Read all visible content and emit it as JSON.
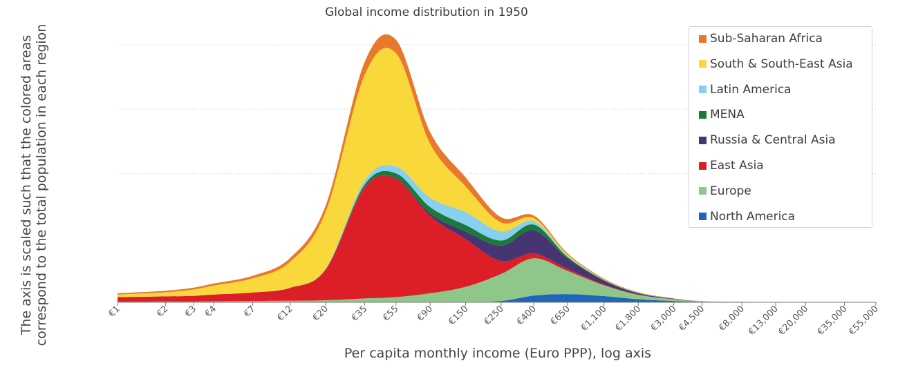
{
  "chart_data": {
    "type": "area",
    "stacked": true,
    "title": "Global income distribution in 1950",
    "xlabel": "Per capita monthly income (Euro PPP), log axis",
    "ylabel_line1": "The axis is scaled such that the colored areas",
    "ylabel_line2": "correspond to the total population in each region",
    "x_scale": "log",
    "xlim": [
      1,
      55000
    ],
    "ylim": [
      0,
      100
    ],
    "grid": "horizontal-dotted",
    "legend_position": "top-right",
    "tick_labels": [
      "€1",
      "€2",
      "€3",
      "€4",
      "€7",
      "€12",
      "€20",
      "€35",
      "€55",
      "€90",
      "€150",
      "€250",
      "€400",
      "€650",
      "€1,100",
      "€1,800",
      "€3,000",
      "€4,500",
      "€8,000",
      "€13,000",
      "€20,000",
      "€35,000",
      "€55,000"
    ],
    "tick_values": [
      1,
      2,
      3,
      4,
      7,
      12,
      20,
      35,
      55,
      90,
      150,
      250,
      400,
      650,
      1100,
      1800,
      3000,
      4500,
      8000,
      13000,
      20000,
      35000,
      55000
    ],
    "x": [
      1,
      2,
      3,
      4,
      7,
      12,
      20,
      35,
      55,
      90,
      150,
      250,
      400,
      650,
      1100,
      1800,
      3000,
      4500,
      8000,
      13000,
      20000,
      35000,
      55000
    ],
    "series": [
      {
        "name": "North America",
        "color": "#1f66b8",
        "values": [
          0,
          0,
          0,
          0,
          0,
          0,
          0,
          0,
          0,
          0,
          0,
          0.5,
          2.6,
          3.2,
          2.4,
          1.2,
          0.5,
          0.2,
          0.1,
          0,
          0,
          0,
          0
        ]
      },
      {
        "name": "Europe",
        "color": "#8fc78b",
        "values": [
          0.2,
          0.3,
          0.3,
          0.4,
          0.5,
          0.6,
          0.8,
          1.5,
          2.0,
          3.5,
          6.0,
          10.5,
          14.5,
          9.0,
          4.2,
          1.7,
          0.7,
          0.2,
          0.1,
          0,
          0,
          0,
          0
        ]
      },
      {
        "name": "East Asia",
        "color": "#dc1f26",
        "values": [
          1.8,
          2.0,
          2.2,
          2.6,
          3.3,
          5.0,
          12.0,
          43.0,
          46.0,
          30.0,
          18.5,
          5.0,
          1.9,
          0.8,
          0.3,
          0.1,
          0,
          0,
          0,
          0,
          0,
          0,
          0
        ]
      },
      {
        "name": "Russia & Central Asia",
        "color": "#473472",
        "values": [
          0,
          0,
          0,
          0,
          0,
          0,
          0,
          0.2,
          0.3,
          1.0,
          3.0,
          6.0,
          9.0,
          4.0,
          1.5,
          0.5,
          0.2,
          0,
          0,
          0,
          0,
          0,
          0
        ]
      },
      {
        "name": "MENA",
        "color": "#1a7b39",
        "values": [
          0,
          0,
          0,
          0,
          0,
          0,
          0,
          1.0,
          1.8,
          2.5,
          2.5,
          2.0,
          2.2,
          0.6,
          0.2,
          0.1,
          0,
          0,
          0,
          0,
          0,
          0,
          0
        ]
      },
      {
        "name": "Latin America",
        "color": "#88d0f0",
        "values": [
          0,
          0,
          0,
          0,
          0,
          0.1,
          0.3,
          1.5,
          2.7,
          3.6,
          5.0,
          3.5,
          1.3,
          0.5,
          0.2,
          0.1,
          0,
          0,
          0,
          0,
          0,
          0,
          0
        ]
      },
      {
        "name": "South & South-East Asia",
        "color": "#f8d83a",
        "values": [
          1.0,
          1.6,
          2.5,
          3.5,
          5.5,
          10.0,
          22.0,
          41.0,
          44.0,
          21.0,
          10.0,
          3.5,
          1.2,
          0.4,
          0.1,
          0.05,
          0,
          0,
          0,
          0,
          0,
          0,
          0
        ]
      },
      {
        "name": "Sub-Saharan Africa",
        "color": "#e8792c",
        "values": [
          0.5,
          0.6,
          0.7,
          0.8,
          1.0,
          1.5,
          2.5,
          5.0,
          5.2,
          4.5,
          3.5,
          2.0,
          1.0,
          0.5,
          0.3,
          0.2,
          0.1,
          0.05,
          0,
          0,
          0,
          0,
          0
        ]
      }
    ]
  }
}
